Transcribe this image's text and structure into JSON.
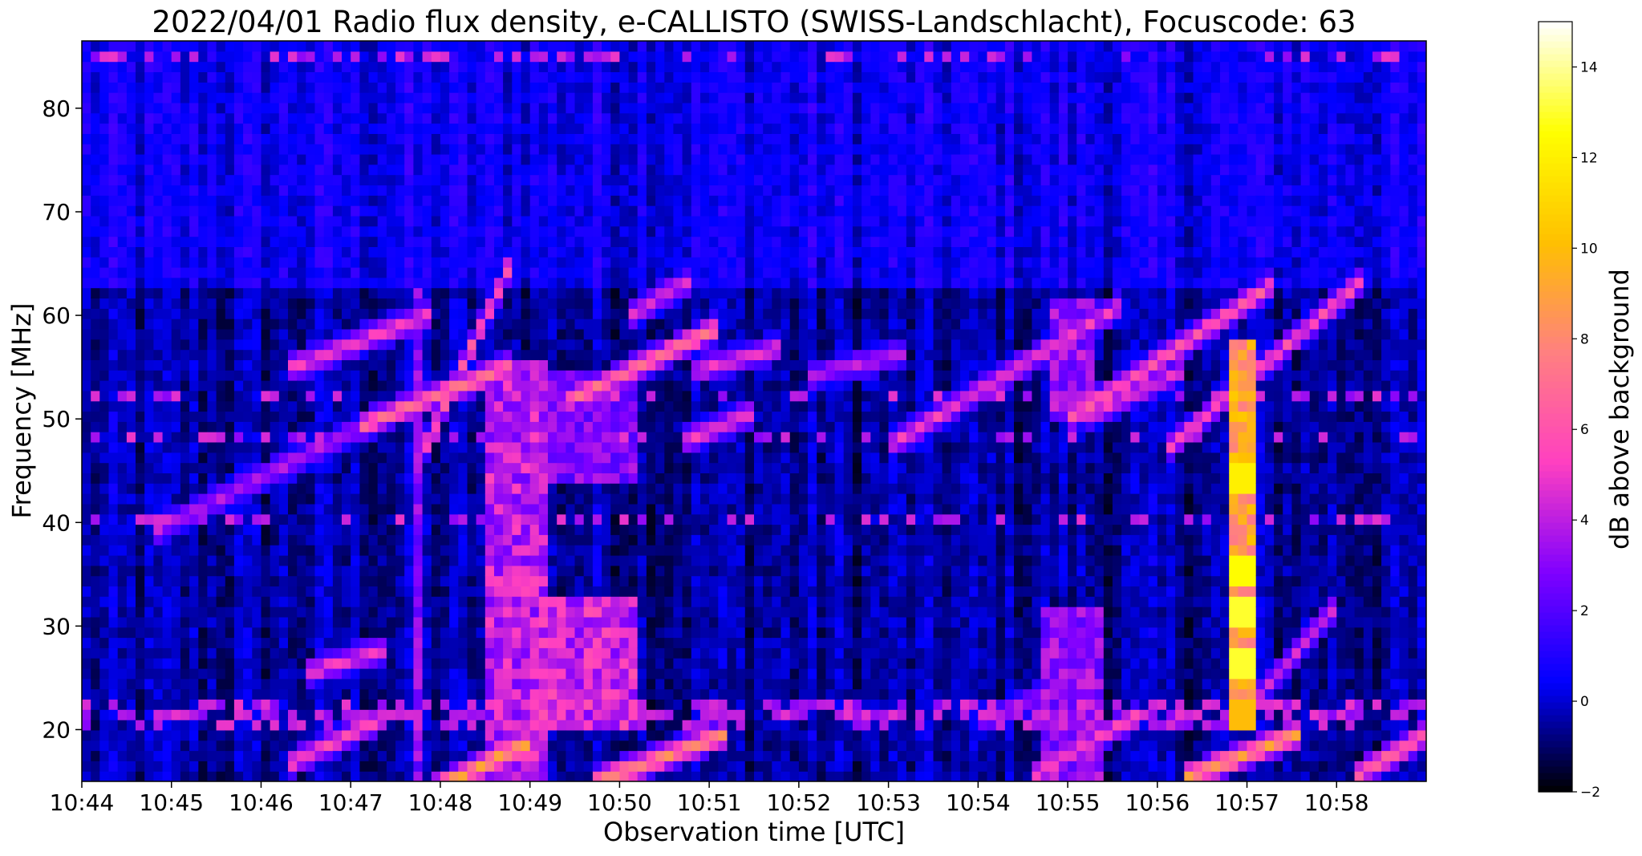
{
  "chart_data": {
    "type": "heatmap",
    "title": "2022/04/01  Radio flux density, e-CALLISTO (SWISS-Landschlacht), Focuscode: 63",
    "xlabel": "Observation time [UTC]",
    "ylabel": "Frequency [MHz]",
    "colorbar_label": "dB above background",
    "x_range_minutes": [
      0,
      15
    ],
    "x_ticks": [
      {
        "label": "10:44",
        "minute": 0
      },
      {
        "label": "10:45",
        "minute": 1
      },
      {
        "label": "10:46",
        "minute": 2
      },
      {
        "label": "10:47",
        "minute": 3
      },
      {
        "label": "10:48",
        "minute": 4
      },
      {
        "label": "10:49",
        "minute": 5
      },
      {
        "label": "10:50",
        "minute": 6
      },
      {
        "label": "10:51",
        "minute": 7
      },
      {
        "label": "10:52",
        "minute": 8
      },
      {
        "label": "10:53",
        "minute": 9
      },
      {
        "label": "10:54",
        "minute": 10
      },
      {
        "label": "10:55",
        "minute": 11
      },
      {
        "label": "10:56",
        "minute": 12
      },
      {
        "label": "10:57",
        "minute": 13
      },
      {
        "label": "10:58",
        "minute": 14
      }
    ],
    "ylim": [
      15,
      86.5
    ],
    "y_ticks": [
      20,
      30,
      40,
      50,
      60,
      70,
      80
    ],
    "colorbar_range": [
      -2,
      15
    ],
    "colorbar_ticks": [
      -2,
      0,
      2,
      4,
      6,
      8,
      10,
      12,
      14
    ],
    "colormap": "gnuplot2",
    "colormap_stops": [
      "#000000",
      "#0000ff",
      "#8000ff",
      "#ff40c0",
      "#ff8080",
      "#ffc000",
      "#ffff00",
      "#ffffff"
    ],
    "background_db_above_63MHz": 0.5,
    "background_db_below_63MHz": -0.5,
    "drifting_bursts": [
      {
        "t_start": 4.65,
        "t_end": 4.0,
        "f_start": 62.5,
        "f_end": 50.5,
        "peak_db": 7.0
      },
      {
        "t_start": 3.7,
        "t_end": 2.5,
        "f_start": 59.5,
        "f_end": 55.5,
        "peak_db": 5.5
      },
      {
        "t_start": 4.6,
        "t_end": 3.3,
        "f_start": 54.5,
        "f_end": 50.0,
        "peak_db": 7.5
      },
      {
        "t_start": 3.3,
        "t_end": 1.0,
        "f_start": 50.0,
        "f_end": 40.0,
        "peak_db": 4.0
      },
      {
        "t_start": 4.8,
        "t_end": 4.1,
        "f_start": 18.0,
        "f_end": 15.0,
        "peak_db": 9.5
      },
      {
        "t_start": 3.2,
        "t_end": 2.5,
        "f_start": 20.5,
        "f_end": 17.5,
        "peak_db": 6.0
      },
      {
        "t_start": 3.3,
        "t_end": 2.7,
        "f_start": 27.5,
        "f_end": 26.0,
        "peak_db": 5.5
      },
      {
        "t_start": 6.9,
        "t_end": 5.6,
        "f_start": 58.0,
        "f_end": 52.5,
        "peak_db": 7.5
      },
      {
        "t_start": 6.6,
        "t_end": 6.3,
        "f_start": 62.5,
        "f_end": 61.0,
        "peak_db": 5.0
      },
      {
        "t_start": 7.6,
        "t_end": 7.0,
        "f_start": 56.5,
        "f_end": 55.0,
        "peak_db": 5.0
      },
      {
        "t_start": 7.3,
        "t_end": 6.9,
        "f_start": 50.0,
        "f_end": 48.5,
        "peak_db": 5.5
      },
      {
        "t_start": 7.0,
        "t_end": 5.9,
        "f_start": 19.0,
        "f_end": 15.5,
        "peak_db": 8.5
      },
      {
        "t_start": 9.0,
        "t_end": 8.3,
        "f_start": 56.0,
        "f_end": 54.5,
        "peak_db": 4.0
      },
      {
        "t_start": 11.4,
        "t_end": 9.2,
        "f_start": 60.0,
        "f_end": 48.5,
        "peak_db": 5.5
      },
      {
        "t_start": 12.1,
        "t_end": 11.4,
        "f_start": 54.0,
        "f_end": 51.0,
        "peak_db": 5.0
      },
      {
        "t_start": 13.2,
        "t_end": 11.2,
        "f_start": 62.5,
        "f_end": 51.0,
        "peak_db": 6.5
      },
      {
        "t_start": 14.1,
        "t_end": 12.3,
        "f_start": 62.0,
        "f_end": 48.5,
        "peak_db": 6.0
      },
      {
        "t_start": 13.8,
        "t_end": 13.1,
        "f_start": 30.0,
        "f_end": 23.0,
        "peak_db": 4.5
      },
      {
        "t_start": 13.4,
        "t_end": 12.5,
        "f_start": 19.0,
        "f_end": 16.0,
        "peak_db": 9.0
      },
      {
        "t_start": 14.9,
        "t_end": 14.4,
        "f_start": 19.0,
        "f_end": 16.5,
        "peak_db": 7.0
      },
      {
        "t_start": 11.6,
        "t_end": 10.8,
        "f_start": 20.5,
        "f_end": 16.5,
        "peak_db": 6.0
      },
      {
        "t_start": 10.8,
        "t_end": 10.2,
        "f_start": 23.5,
        "f_end": 21.5,
        "peak_db": 4.0
      }
    ],
    "broadband_patches": [
      {
        "t0": 4.55,
        "t1": 5.15,
        "f0": 15,
        "f1": 56,
        "peak_db": 5.5
      },
      {
        "t0": 5.15,
        "t1": 6.15,
        "f0": 20,
        "f1": 33,
        "peak_db": 6.0
      },
      {
        "t0": 5.0,
        "t1": 6.2,
        "f0": 44,
        "f1": 55,
        "peak_db": 4.0
      },
      {
        "t0": 10.75,
        "t1": 11.45,
        "f0": 15,
        "f1": 32,
        "peak_db": 4.5
      },
      {
        "t0": 10.85,
        "t1": 11.35,
        "f0": 50,
        "f1": 62,
        "peak_db": 4.5
      },
      {
        "t0": 3.7,
        "t1": 3.82,
        "f0": 15,
        "f1": 63,
        "peak_db": 4.0
      }
    ],
    "vertical_burst": {
      "t": 12.97,
      "width": 0.12,
      "f0": 20,
      "f1": 58,
      "peak_db": 10.5,
      "hotspots": [
        {
          "f": 44.5,
          "db": 12.0
        },
        {
          "f": 35.0,
          "db": 12.5
        },
        {
          "f": 31.5,
          "db": 13.0
        },
        {
          "f": 26.5,
          "db": 13.0
        },
        {
          "f": 21.5,
          "db": 10.0
        }
      ]
    },
    "interference_lines_MHz": [
      21.0,
      22.0,
      40.0,
      48.5,
      52.0,
      85.0
    ]
  }
}
